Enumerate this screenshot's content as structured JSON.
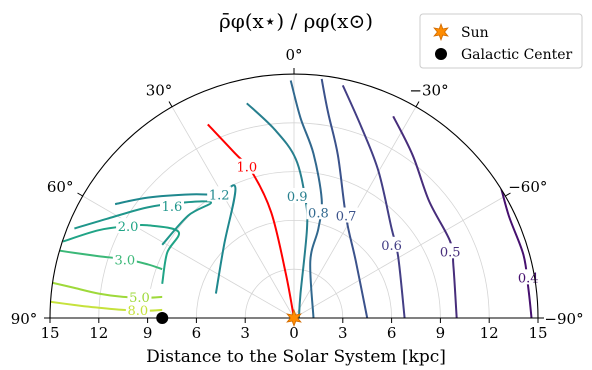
{
  "chart_data": {
    "type": "contour-polar",
    "title": "ρ̄φ(x⋆) / ρφ(x⊙)",
    "xlabel": "Distance to the Solar System [kpc]",
    "x_ticks": [
      15,
      12,
      9,
      6,
      3,
      0,
      3,
      6,
      9,
      12,
      15
    ],
    "r_max": 15,
    "angle_ticks": [
      {
        "deg": 0,
        "label": "0°"
      },
      {
        "deg": 30,
        "label": "30°"
      },
      {
        "deg": -30,
        "label": "−30°"
      },
      {
        "deg": 60,
        "label": "60°"
      },
      {
        "deg": -60,
        "label": "−60°"
      },
      {
        "deg": 90,
        "label": "90°"
      },
      {
        "deg": -90,
        "label": "−90°"
      }
    ],
    "grid_radii": [
      3,
      6,
      9,
      12
    ],
    "grid_angles": [
      -60,
      -30,
      0,
      30,
      60
    ],
    "legend": [
      {
        "name": "Sun",
        "marker": "star",
        "color": "#ff8c00"
      },
      {
        "name": "Galactic Center",
        "marker": "circle",
        "color": "#000000"
      }
    ],
    "sun": {
      "x": 0,
      "y": 0
    },
    "galactic_center": {
      "x": 8.1,
      "y": 0
    },
    "contours": [
      {
        "level": "8.0",
        "color": "#c6e23c",
        "points": [
          [
            8.1,
            0.5
          ],
          [
            9.0,
            0.45
          ],
          [
            10.5,
            0.5
          ],
          [
            12.2,
            0.65
          ],
          [
            13.5,
            0.8
          ],
          [
            15,
            1.0
          ]
        ],
        "label_at": [
          9.6,
          0.5
        ]
      },
      {
        "level": "5.0",
        "color": "#9ed93a",
        "points": [
          [
            8.1,
            1.3
          ],
          [
            9.0,
            1.25
          ],
          [
            10.5,
            1.3
          ],
          [
            12.0,
            1.5
          ],
          [
            13.5,
            1.85
          ],
          [
            15,
            2.2
          ]
        ],
        "label_at": [
          9.5,
          1.3
        ]
      },
      {
        "level": "3.0",
        "color": "#3bb878",
        "points": [
          [
            8.1,
            3.0
          ],
          [
            9.0,
            3.3
          ],
          [
            10.3,
            3.6
          ],
          [
            12,
            3.8
          ],
          [
            13.5,
            4.0
          ],
          [
            14.8,
            4.2
          ]
        ],
        "label_at": [
          10.4,
          3.6
        ]
      },
      {
        "level": "2.0",
        "color": "#20a486",
        "points": [
          [
            8.1,
            2.1
          ],
          [
            7.8,
            4.0
          ],
          [
            7.1,
            5.3
          ],
          [
            9.0,
            5.7
          ],
          [
            10.2,
            5.65
          ],
          [
            12,
            5.4
          ],
          [
            14.2,
            4.7
          ]
        ],
        "label_at": [
          10.2,
          5.65
        ]
      },
      {
        "level": "1.6",
        "color": "#1f968b",
        "points": [
          [
            8.1,
            4.5
          ],
          [
            6.5,
            6.3
          ],
          [
            5.1,
            7.1
          ],
          [
            6.8,
            7.1
          ],
          [
            9.0,
            6.8
          ],
          [
            11.5,
            6.1
          ],
          [
            13.5,
            5.5
          ]
        ],
        "label_at": [
          7.5,
          6.9
        ]
      },
      {
        "level": "1.2",
        "color": "#1f888e",
        "points": [
          [
            4.8,
            1.5
          ],
          [
            4.3,
            4.5
          ],
          [
            3.6,
            8.0
          ],
          [
            4.6,
            7.6
          ],
          [
            6.3,
            7.6
          ],
          [
            9.0,
            7.4
          ],
          [
            11,
            7.0
          ]
        ],
        "label_at": [
          4.6,
          7.6
        ]
      },
      {
        "level": "1.0",
        "color": "#ff0000",
        "points": [
          [
            0,
            0
          ],
          [
            0.5,
            2.7
          ],
          [
            1.4,
            6.5
          ],
          [
            2.6,
            9.0
          ],
          [
            3.6,
            10.1
          ],
          [
            5.3,
            11.9
          ]
        ],
        "label_at": [
          2.9,
          9.3
        ]
      },
      {
        "level": "0.9",
        "color": "#277f8e",
        "points": [
          [
            -0.3,
            0
          ],
          [
            -0.4,
            1.5
          ],
          [
            -0.8,
            5.5
          ],
          [
            -0.7,
            7.3
          ],
          [
            -0.1,
            9.8
          ],
          [
            1.2,
            11.6
          ],
          [
            2.9,
            13.2
          ]
        ],
        "label_at": [
          -0.2,
          7.5
        ]
      },
      {
        "level": "0.8",
        "color": "#31688e",
        "points": [
          [
            -1.2,
            0
          ],
          [
            -1.0,
            3.5
          ],
          [
            -1.5,
            5.5
          ],
          [
            -1.7,
            7.3
          ],
          [
            -1.2,
            10.1
          ],
          [
            -0.4,
            12.3
          ],
          [
            0.2,
            14.6
          ]
        ],
        "label_at": [
          -1.5,
          6.5
        ]
      },
      {
        "level": "0.7",
        "color": "#3b528b",
        "points": [
          [
            -4.5,
            0
          ],
          [
            -3.8,
            3.5
          ],
          [
            -3.2,
            6.2
          ],
          [
            -2.7,
            10.0
          ],
          [
            -2.1,
            12.6
          ],
          [
            -1.7,
            14.7
          ]
        ],
        "label_at": [
          -3.2,
          6.3
        ]
      },
      {
        "level": "0.6",
        "color": "#433e85",
        "points": [
          [
            -6.8,
            0
          ],
          [
            -6.4,
            3.8
          ],
          [
            -6.0,
            5.5
          ],
          [
            -5.2,
            9.0
          ],
          [
            -4.2,
            11.6
          ],
          [
            -3.0,
            14.3
          ]
        ],
        "label_at": [
          -6.0,
          4.5
        ]
      },
      {
        "level": "0.5",
        "color": "#472d7b",
        "points": [
          [
            -10,
            0
          ],
          [
            -9.8,
            3.2
          ],
          [
            -9.6,
            4.7
          ],
          [
            -8.3,
            7.2
          ],
          [
            -7.3,
            10.0
          ],
          [
            -6.1,
            12.4
          ]
        ],
        "label_at": [
          -9.6,
          4.1
        ]
      },
      {
        "level": "0.4",
        "color": "#46106f",
        "points": [
          [
            -14.6,
            0
          ],
          [
            -14.4,
            1.9
          ],
          [
            -14.1,
            3.9
          ],
          [
            -13.2,
            6.3
          ],
          [
            -12.6,
            8.5
          ]
        ],
        "label_at": [
          -14.4,
          2.5
        ]
      }
    ]
  }
}
